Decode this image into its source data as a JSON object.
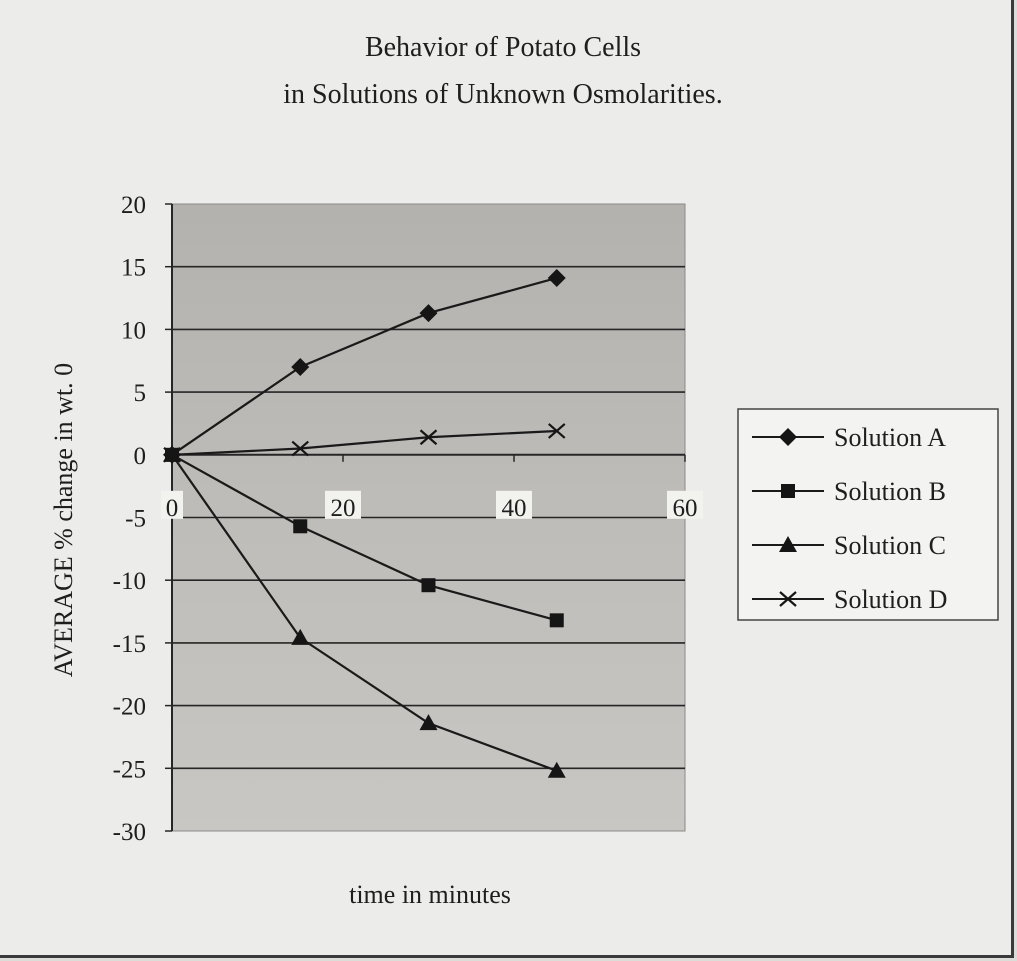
{
  "chart_data": {
    "type": "line",
    "title": [
      "Behavior of Potato Cells",
      "in Solutions of Unknown Osmolarities."
    ],
    "xlabel": "time in minutes",
    "ylabel": "AVERAGE % change in wt. 0",
    "xlim": [
      0,
      60
    ],
    "ylim": [
      -30,
      20
    ],
    "xticks": [
      "0",
      "20",
      "40",
      "60"
    ],
    "yticks": [
      "20",
      "15",
      "10",
      "5",
      "0",
      "-5",
      "-10",
      "-15",
      "-20",
      "-25",
      "-30"
    ],
    "grid": true,
    "legend_position": "right",
    "series": [
      {
        "name": "Solution A",
        "marker": "diamond",
        "x": [
          0,
          15,
          30,
          45
        ],
        "y": [
          0,
          7,
          11.3,
          14.1
        ]
      },
      {
        "name": "Solution B",
        "marker": "square",
        "x": [
          0,
          15,
          30,
          45
        ],
        "y": [
          0,
          -5.7,
          -10.4,
          -13.2
        ]
      },
      {
        "name": "Solution C",
        "marker": "triangle",
        "x": [
          0,
          15,
          30,
          45
        ],
        "y": [
          0,
          -14.6,
          -21.4,
          -25.2
        ]
      },
      {
        "name": "Solution D",
        "marker": "x",
        "x": [
          0,
          15,
          30,
          45
        ],
        "y": [
          0,
          0.5,
          1.4,
          1.9
        ]
      }
    ]
  }
}
